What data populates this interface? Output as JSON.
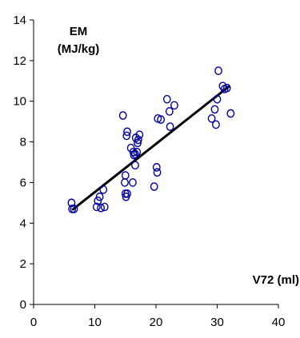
{
  "chart_data": {
    "type": "scatter",
    "title": "",
    "ylabel_lines": [
      "EM",
      "(MJ/kg)"
    ],
    "xlabel": "V72 (ml)",
    "xlim": [
      0,
      40
    ],
    "ylim": [
      0,
      14
    ],
    "x_ticks": [
      0,
      10,
      20,
      30,
      40
    ],
    "y_ticks": [
      0,
      2,
      4,
      6,
      8,
      10,
      12,
      14
    ],
    "grid": false,
    "legend": "none",
    "colors": {
      "marker": "#0000a0",
      "trendline": "#000000",
      "axis": "#000000"
    },
    "points": [
      {
        "x": 6.2,
        "y": 5.0
      },
      {
        "x": 6.3,
        "y": 4.7
      },
      {
        "x": 6.6,
        "y": 4.7
      },
      {
        "x": 10.3,
        "y": 4.8
      },
      {
        "x": 10.5,
        "y": 5.1
      },
      {
        "x": 10.8,
        "y": 5.3
      },
      {
        "x": 11.0,
        "y": 4.75
      },
      {
        "x": 11.4,
        "y": 5.65
      },
      {
        "x": 11.6,
        "y": 4.8
      },
      {
        "x": 14.6,
        "y": 9.3
      },
      {
        "x": 14.9,
        "y": 6.0
      },
      {
        "x": 15.0,
        "y": 6.35
      },
      {
        "x": 15.0,
        "y": 5.45
      },
      {
        "x": 15.1,
        "y": 5.3
      },
      {
        "x": 15.2,
        "y": 8.3
      },
      {
        "x": 15.3,
        "y": 8.5
      },
      {
        "x": 15.3,
        "y": 5.45
      },
      {
        "x": 15.9,
        "y": 7.7
      },
      {
        "x": 16.2,
        "y": 6.0
      },
      {
        "x": 16.3,
        "y": 7.5
      },
      {
        "x": 16.4,
        "y": 7.35
      },
      {
        "x": 16.6,
        "y": 7.4
      },
      {
        "x": 16.6,
        "y": 6.85
      },
      {
        "x": 16.7,
        "y": 8.2
      },
      {
        "x": 16.9,
        "y": 7.5
      },
      {
        "x": 17.0,
        "y": 7.95
      },
      {
        "x": 17.1,
        "y": 8.1
      },
      {
        "x": 17.3,
        "y": 8.35
      },
      {
        "x": 19.7,
        "y": 5.8
      },
      {
        "x": 20.1,
        "y": 6.75
      },
      {
        "x": 20.2,
        "y": 6.5
      },
      {
        "x": 20.3,
        "y": 9.15
      },
      {
        "x": 20.8,
        "y": 9.1
      },
      {
        "x": 21.8,
        "y": 10.1
      },
      {
        "x": 22.2,
        "y": 9.5
      },
      {
        "x": 22.3,
        "y": 8.75
      },
      {
        "x": 23.0,
        "y": 9.8
      },
      {
        "x": 29.1,
        "y": 9.15
      },
      {
        "x": 29.6,
        "y": 9.6
      },
      {
        "x": 29.8,
        "y": 8.85
      },
      {
        "x": 30.0,
        "y": 10.1
      },
      {
        "x": 30.2,
        "y": 11.5
      },
      {
        "x": 30.9,
        "y": 10.75
      },
      {
        "x": 31.2,
        "y": 10.6
      },
      {
        "x": 31.6,
        "y": 10.65
      },
      {
        "x": 32.2,
        "y": 9.4
      }
    ],
    "trendline": {
      "x": [
        6.3,
        32.0
      ],
      "y": [
        4.65,
        10.75
      ]
    }
  }
}
